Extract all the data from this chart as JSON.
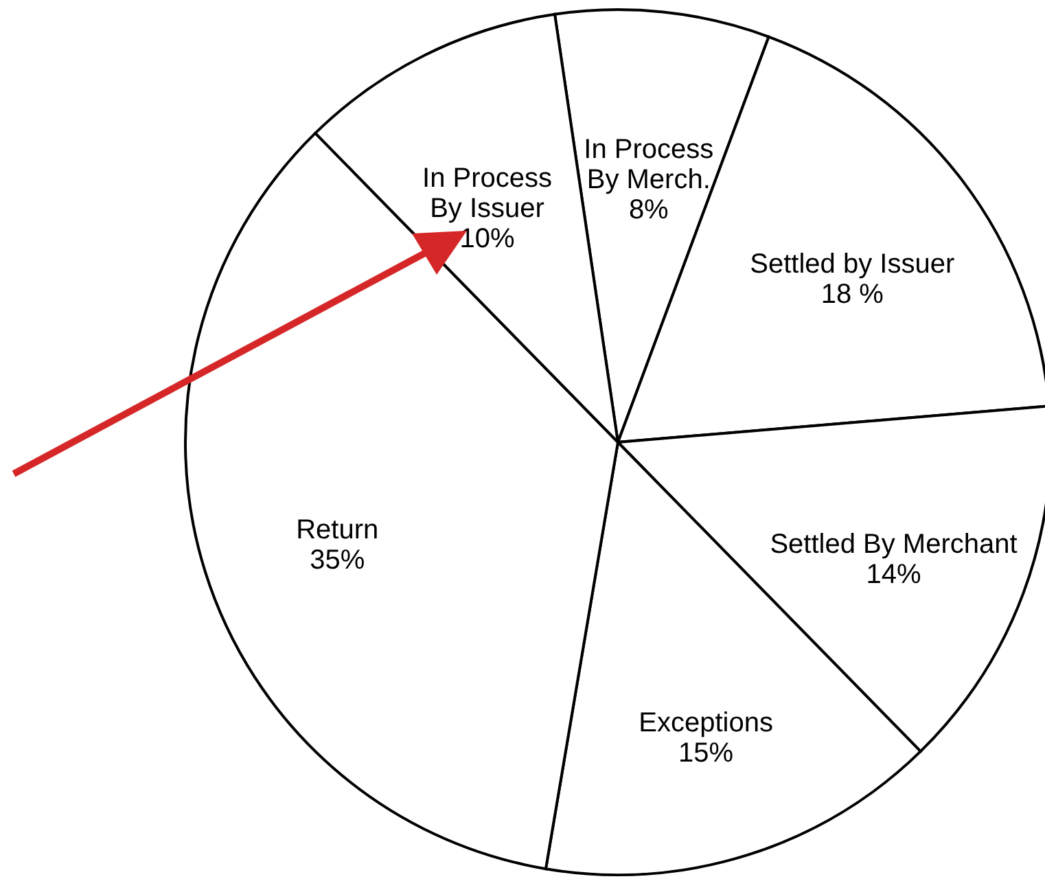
{
  "chart_data": {
    "type": "pie",
    "categories": [
      "In Process By Merch.",
      "Settled by Issuer",
      "Settled By Merchant",
      "Exceptions",
      "Return",
      "In Process By Issuer"
    ],
    "values": [
      8,
      18,
      14,
      15,
      35,
      10
    ],
    "value_labels": [
      "8%",
      "18 %",
      "14%",
      "15%",
      "35%",
      "10%"
    ],
    "colors": [
      "#ffffff",
      "#ffffff",
      "#ffffff",
      "#ffffff",
      "#ffffff",
      "#ffffff"
    ]
  }
}
